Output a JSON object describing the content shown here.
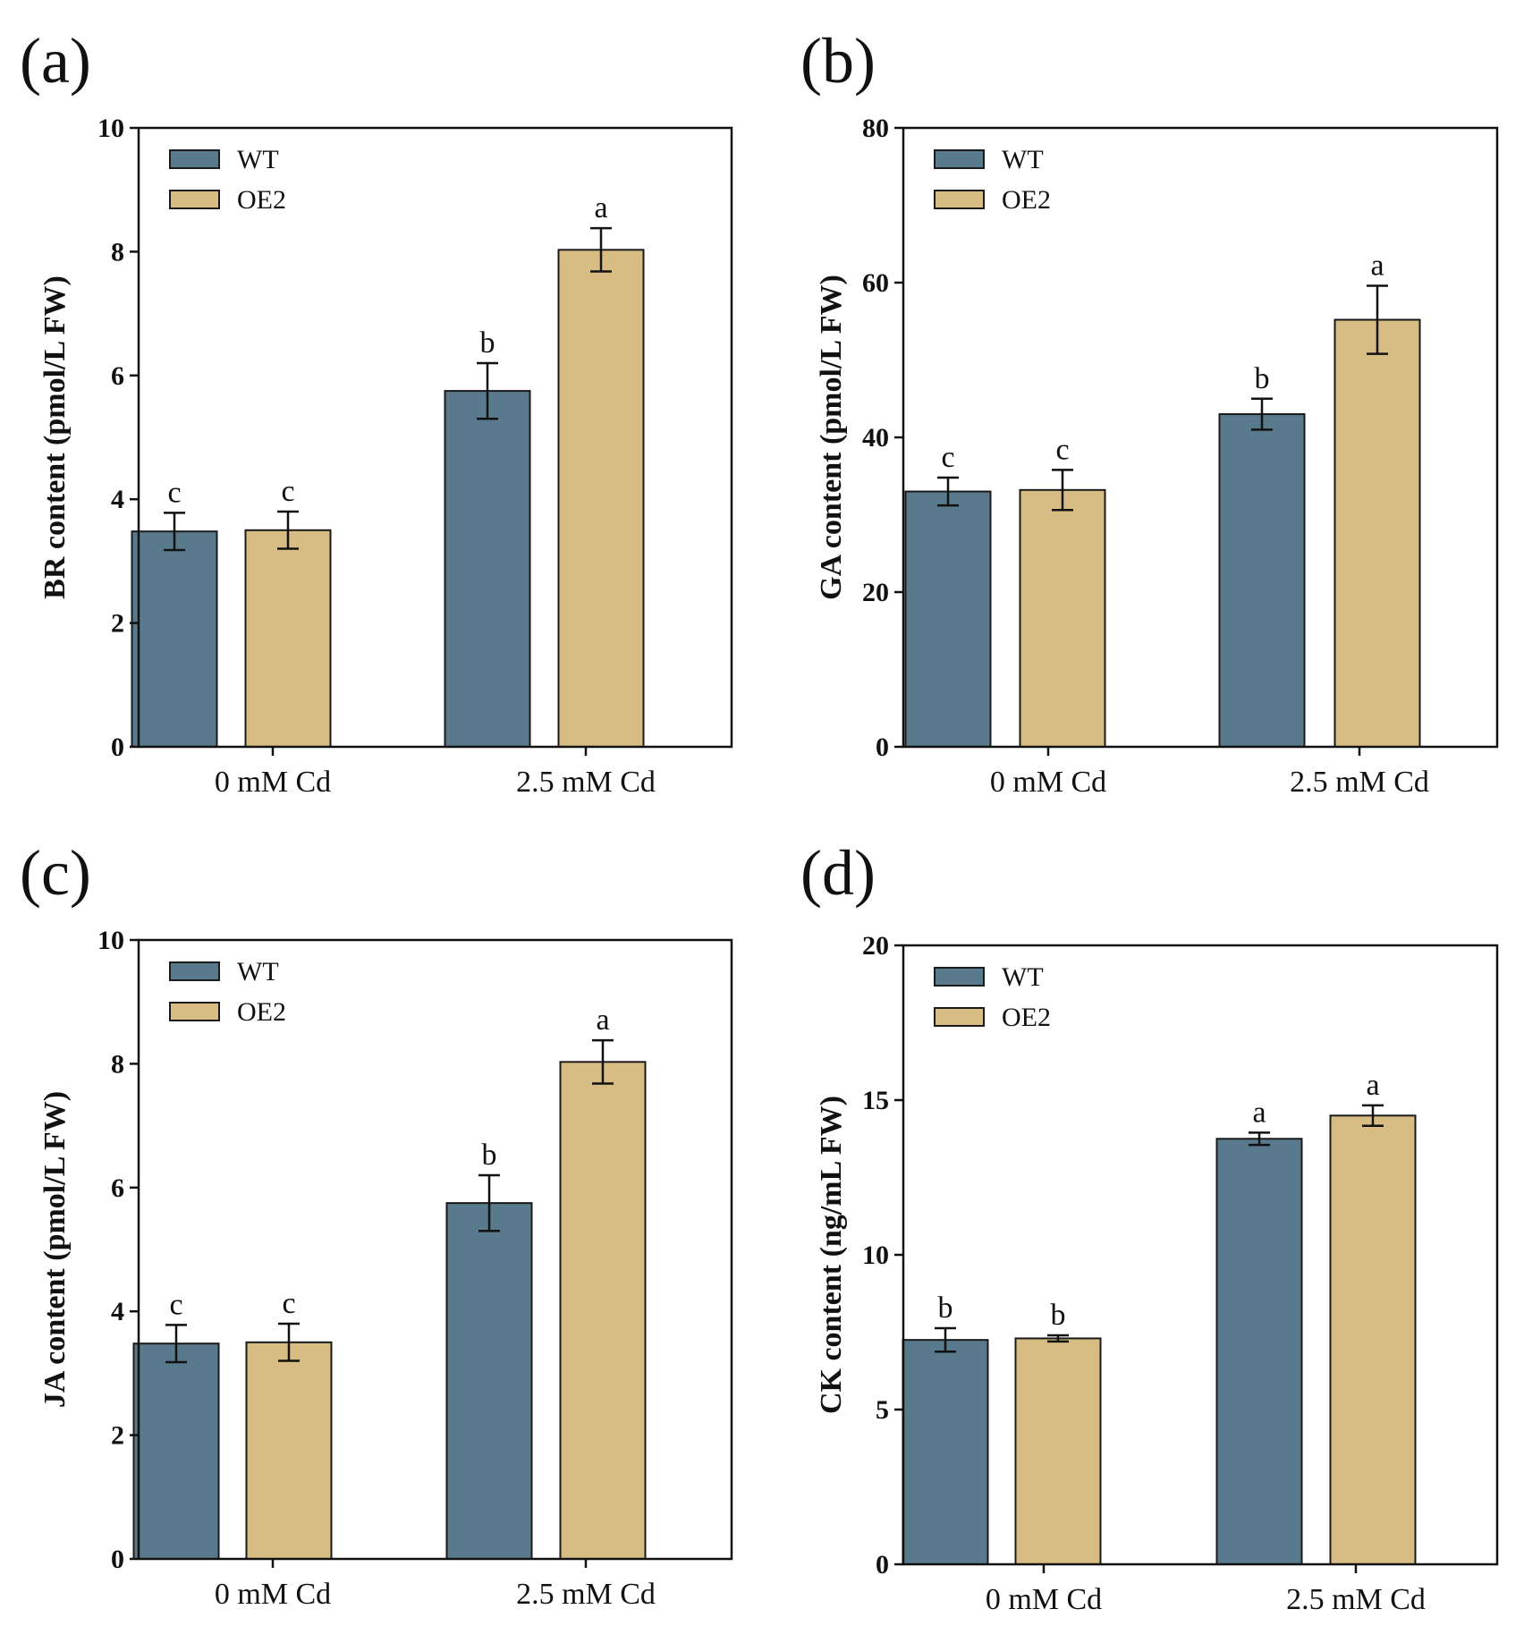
{
  "chart_data": [
    {
      "panel_label": "(a)",
      "type": "bar",
      "title": "",
      "xlabel": "",
      "ylabel": "BR content (pmol/L FW)",
      "ylim": [
        0,
        10
      ],
      "yticks": [
        0,
        2,
        4,
        6,
        8,
        10
      ],
      "categories": [
        "0 mM Cd",
        "2.5 mM Cd"
      ],
      "series": [
        {
          "name": "WT",
          "color": "#587a8c",
          "values": [
            3.48,
            5.75
          ],
          "errors": [
            0.3,
            0.45
          ],
          "letters": [
            "c",
            "b"
          ]
        },
        {
          "name": "OE2",
          "color": "#d7bd83",
          "values": [
            3.5,
            8.03
          ],
          "errors": [
            0.3,
            0.35
          ],
          "letters": [
            "c",
            "a"
          ]
        }
      ],
      "legend_position": "top-left",
      "grid": false
    },
    {
      "panel_label": "(b)",
      "type": "bar",
      "title": "",
      "xlabel": "",
      "ylabel": "GA content (pmol/L FW)",
      "ylim": [
        0,
        80
      ],
      "yticks": [
        0,
        20,
        40,
        60,
        80
      ],
      "categories": [
        "0 mM Cd",
        "2.5 mM Cd"
      ],
      "series": [
        {
          "name": "WT",
          "color": "#587a8c",
          "values": [
            33.0,
            43.0
          ],
          "errors": [
            1.8,
            2.0
          ],
          "letters": [
            "c",
            "b"
          ]
        },
        {
          "name": "OE2",
          "color": "#d7bd83",
          "values": [
            33.2,
            55.2
          ],
          "errors": [
            2.6,
            4.4
          ],
          "letters": [
            "c",
            "a"
          ]
        }
      ],
      "legend_position": "top-left",
      "grid": false
    },
    {
      "panel_label": "(c)",
      "type": "bar",
      "title": "",
      "xlabel": "",
      "ylabel": "JA content (pmol/L FW)",
      "ylim": [
        0,
        10
      ],
      "yticks": [
        0,
        2,
        4,
        6,
        8,
        10
      ],
      "categories": [
        "0 mM Cd",
        "2.5 mM Cd"
      ],
      "series": [
        {
          "name": "WT",
          "color": "#587a8c",
          "values": [
            3.48,
            5.75
          ],
          "errors": [
            0.3,
            0.45
          ],
          "letters": [
            "c",
            "b"
          ]
        },
        {
          "name": "OE2",
          "color": "#d7bd83",
          "values": [
            3.5,
            8.03
          ],
          "errors": [
            0.3,
            0.35
          ],
          "letters": [
            "c",
            "a"
          ]
        }
      ],
      "legend_position": "top-left",
      "grid": false
    },
    {
      "panel_label": "(d)",
      "type": "bar",
      "title": "",
      "xlabel": "",
      "ylabel": "CK content (ng/mL FW)",
      "ylim": [
        0,
        20
      ],
      "yticks": [
        0,
        5,
        10,
        15,
        20
      ],
      "categories": [
        "0 mM Cd",
        "2.5 mM Cd"
      ],
      "series": [
        {
          "name": "WT",
          "color": "#587a8c",
          "values": [
            7.25,
            13.75
          ],
          "errors": [
            0.38,
            0.2
          ],
          "letters": [
            "b",
            "a"
          ]
        },
        {
          "name": "OE2",
          "color": "#d7bd83",
          "values": [
            7.3,
            14.5
          ],
          "errors": [
            0.1,
            0.33
          ],
          "letters": [
            "b",
            "a"
          ]
        }
      ],
      "legend_position": "top-left",
      "grid": false
    }
  ]
}
